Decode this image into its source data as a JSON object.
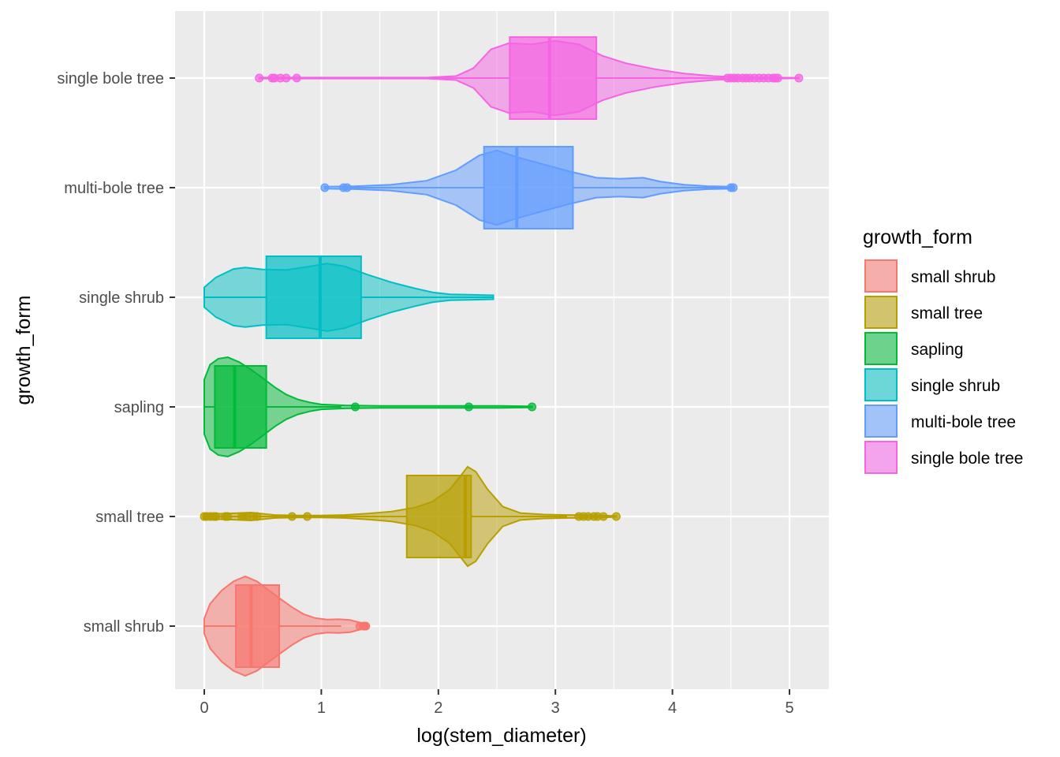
{
  "chart_data": {
    "type": "violin+boxplot",
    "xlabel": "log(stem_diameter)",
    "ylabel": "growth_form",
    "xlim": [
      -0.27,
      5.33
    ],
    "x_ticks": [
      "0",
      "1",
      "2",
      "3",
      "4",
      "5"
    ],
    "x_tick_values": [
      0,
      1,
      2,
      3,
      4,
      5
    ],
    "grid": true,
    "legend": {
      "title": "growth_form",
      "position": "right"
    },
    "categories": [
      "small shrub",
      "small tree",
      "sapling",
      "single shrub",
      "multi-bole tree",
      "single bole tree"
    ],
    "series": [
      {
        "name": "small shrub",
        "color": "#F8766D",
        "box": {
          "q1": 0.27,
          "median": 0.4,
          "q3": 0.64,
          "whisker_low": 0.0,
          "whisker_high": 1.17
        },
        "outliers": [
          1.33,
          1.36,
          1.37,
          1.38
        ],
        "violin": [
          [
            0.0,
            0.15
          ],
          [
            0.05,
            0.45
          ],
          [
            0.15,
            0.72
          ],
          [
            0.25,
            0.9
          ],
          [
            0.35,
            1.0
          ],
          [
            0.45,
            0.9
          ],
          [
            0.55,
            0.72
          ],
          [
            0.65,
            0.55
          ],
          [
            0.75,
            0.38
          ],
          [
            0.85,
            0.24
          ],
          [
            0.95,
            0.16
          ],
          [
            1.05,
            0.13
          ],
          [
            1.15,
            0.14
          ],
          [
            1.25,
            0.12
          ],
          [
            1.33,
            0.07
          ],
          [
            1.39,
            0.03
          ]
        ]
      },
      {
        "name": "small tree",
        "color": "#B79F00",
        "box": {
          "q1": 1.73,
          "median": 2.23,
          "q3": 2.28,
          "whisker_low": 0.0,
          "whisker_high": 3.1
        },
        "outliers": [
          0.0,
          0.02,
          0.05,
          0.08,
          0.1,
          0.18,
          0.2,
          0.32,
          0.34,
          0.36,
          0.42,
          0.45,
          0.75,
          0.88,
          3.2,
          3.24,
          3.28,
          3.33,
          3.36,
          3.41,
          3.52
        ],
        "violin": [
          [
            0.0,
            0.05
          ],
          [
            0.2,
            0.06
          ],
          [
            0.4,
            0.08
          ],
          [
            0.6,
            0.03
          ],
          [
            0.8,
            0.02
          ],
          [
            1.0,
            0.02
          ],
          [
            1.2,
            0.03
          ],
          [
            1.4,
            0.06
          ],
          [
            1.6,
            0.1
          ],
          [
            1.8,
            0.18
          ],
          [
            1.95,
            0.3
          ],
          [
            2.1,
            0.55
          ],
          [
            2.2,
            0.85
          ],
          [
            2.25,
            1.0
          ],
          [
            2.32,
            0.9
          ],
          [
            2.42,
            0.55
          ],
          [
            2.55,
            0.2
          ],
          [
            2.7,
            0.07
          ],
          [
            2.9,
            0.04
          ],
          [
            3.1,
            0.03
          ],
          [
            3.3,
            0.025
          ],
          [
            3.52,
            0.01
          ]
        ]
      },
      {
        "name": "sapling",
        "color": "#00BA38",
        "box": {
          "q1": 0.09,
          "median": 0.26,
          "q3": 0.53,
          "whisker_low": 0.0,
          "whisker_high": 1.17
        },
        "outliers": [
          1.29,
          2.26,
          2.8
        ],
        "violin": [
          [
            0.0,
            0.55
          ],
          [
            0.05,
            0.85
          ],
          [
            0.12,
            0.97
          ],
          [
            0.2,
            1.0
          ],
          [
            0.3,
            0.9
          ],
          [
            0.4,
            0.75
          ],
          [
            0.5,
            0.58
          ],
          [
            0.6,
            0.4
          ],
          [
            0.7,
            0.25
          ],
          [
            0.8,
            0.15
          ],
          [
            0.9,
            0.09
          ],
          [
            1.0,
            0.05
          ],
          [
            1.2,
            0.03
          ],
          [
            1.5,
            0.02
          ],
          [
            2.0,
            0.02
          ],
          [
            2.5,
            0.02
          ],
          [
            2.8,
            0.01
          ]
        ]
      },
      {
        "name": "single shrub",
        "color": "#00BFC4",
        "box": {
          "q1": 0.53,
          "median": 0.99,
          "q3": 1.34,
          "whisker_low": 0.0,
          "whisker_high": 2.47
        },
        "outliers": [],
        "violin": [
          [
            0.0,
            0.2
          ],
          [
            0.1,
            0.4
          ],
          [
            0.25,
            0.57
          ],
          [
            0.35,
            0.6
          ],
          [
            0.5,
            0.56
          ],
          [
            0.7,
            0.55
          ],
          [
            0.9,
            0.62
          ],
          [
            1.05,
            0.68
          ],
          [
            1.2,
            0.62
          ],
          [
            1.4,
            0.45
          ],
          [
            1.6,
            0.3
          ],
          [
            1.8,
            0.18
          ],
          [
            1.95,
            0.1
          ],
          [
            2.1,
            0.06
          ],
          [
            2.3,
            0.05
          ],
          [
            2.47,
            0.04
          ]
        ]
      },
      {
        "name": "multi-bole tree",
        "color": "#619CFF",
        "box": {
          "q1": 2.39,
          "median": 2.67,
          "q3": 3.15,
          "whisker_low": 1.24,
          "whisker_high": 4.5
        },
        "outliers": [
          1.03,
          1.19,
          1.22,
          4.5,
          4.52
        ],
        "violin": [
          [
            1.03,
            0.02
          ],
          [
            1.3,
            0.03
          ],
          [
            1.6,
            0.06
          ],
          [
            1.9,
            0.14
          ],
          [
            2.15,
            0.35
          ],
          [
            2.35,
            0.65
          ],
          [
            2.5,
            0.75
          ],
          [
            2.65,
            0.63
          ],
          [
            2.85,
            0.5
          ],
          [
            3.1,
            0.34
          ],
          [
            3.35,
            0.2
          ],
          [
            3.55,
            0.18
          ],
          [
            3.75,
            0.2
          ],
          [
            3.9,
            0.12
          ],
          [
            4.1,
            0.06
          ],
          [
            4.3,
            0.03
          ],
          [
            4.52,
            0.02
          ]
        ]
      },
      {
        "name": "single bole tree",
        "color": "#F564E3",
        "box": {
          "q1": 2.61,
          "median": 2.95,
          "q3": 3.35,
          "whisker_low": 1.8,
          "whisker_high": 4.45
        },
        "outliers": [
          0.47,
          0.58,
          0.6,
          0.65,
          0.7,
          0.79,
          4.47,
          4.5,
          4.53,
          4.56,
          4.6,
          4.63,
          4.66,
          4.7,
          4.74,
          4.78,
          4.82,
          4.86,
          4.88,
          4.9,
          5.08
        ],
        "violin": [
          [
            0.47,
            0.01
          ],
          [
            1.0,
            0.01
          ],
          [
            1.5,
            0.01
          ],
          [
            1.9,
            0.01
          ],
          [
            2.15,
            0.04
          ],
          [
            2.3,
            0.2
          ],
          [
            2.45,
            0.58
          ],
          [
            2.6,
            0.7
          ],
          [
            2.8,
            0.68
          ],
          [
            3.0,
            0.75
          ],
          [
            3.2,
            0.68
          ],
          [
            3.4,
            0.45
          ],
          [
            3.6,
            0.3
          ],
          [
            3.85,
            0.18
          ],
          [
            4.1,
            0.09
          ],
          [
            4.35,
            0.04
          ],
          [
            4.6,
            0.015
          ],
          [
            4.9,
            0.01
          ],
          [
            5.08,
            0.005
          ]
        ]
      }
    ]
  }
}
